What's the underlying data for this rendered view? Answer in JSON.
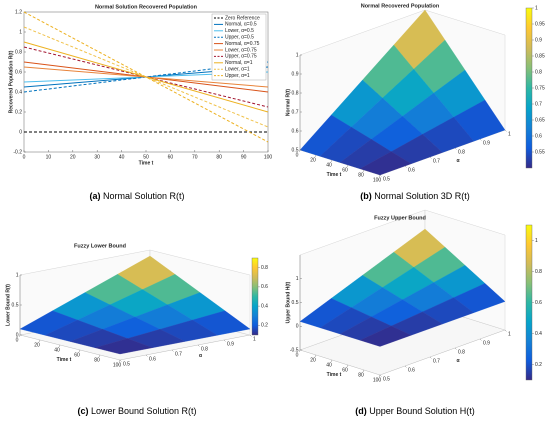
{
  "chart_data": [
    {
      "type": "line",
      "title": "Normal Solution Recovered Population",
      "x_label": "Time t",
      "y_label": "Recovered Population R(t)",
      "xlim": [
        0,
        100
      ],
      "xticks": [
        0,
        10,
        20,
        30,
        40,
        50,
        60,
        70,
        80,
        90,
        100
      ],
      "ylim": [
        -0.2,
        1.2
      ],
      "yticks": [
        -0.2,
        0,
        0.2,
        0.4,
        0.6,
        0.8,
        1,
        1.2
      ],
      "legend": "upper right",
      "series": [
        {
          "name": "Zero Reference",
          "color": "#000000",
          "dash": true,
          "x": [
            0,
            100
          ],
          "values": [
            0,
            0
          ]
        },
        {
          "name": "Normal, α=0.5",
          "color": "#0072bd",
          "dash": false,
          "x": [
            0,
            100
          ],
          "values": [
            0.45,
            0.65
          ]
        },
        {
          "name": "Lower, α=0.5",
          "color": "#4dbeee",
          "dash": false,
          "x": [
            0,
            100
          ],
          "values": [
            0.5,
            0.6
          ]
        },
        {
          "name": "Upper, α=0.5",
          "color": "#0072bd",
          "dash": true,
          "x": [
            0,
            100
          ],
          "values": [
            0.4,
            0.7
          ]
        },
        {
          "name": "Normal, α=0.75",
          "color": "#d95319",
          "dash": false,
          "x": [
            0,
            100
          ],
          "values": [
            0.7,
            0.4
          ]
        },
        {
          "name": "Lower, α=0.75",
          "color": "#e8833a",
          "dash": false,
          "x": [
            0,
            100
          ],
          "values": [
            0.65,
            0.45
          ]
        },
        {
          "name": "Upper, α=0.75",
          "color": "#a2142f",
          "dash": true,
          "x": [
            0,
            100
          ],
          "values": [
            0.85,
            0.25
          ]
        },
        {
          "name": "Normal, α=1",
          "color": "#edb120",
          "dash": false,
          "x": [
            0,
            100
          ],
          "values": [
            0.9,
            0.2
          ]
        },
        {
          "name": "Lower, α=1",
          "color": "#f0c24a",
          "dash": true,
          "x": [
            0,
            100
          ],
          "values": [
            1.05,
            0.05
          ]
        },
        {
          "name": "Upper, α=1",
          "color": "#edb120",
          "dash": true,
          "x": [
            0,
            100
          ],
          "values": [
            1.2,
            -0.1
          ]
        }
      ],
      "caption": {
        "label": "(a)",
        "text": "Normal Solution R(t)"
      }
    },
    {
      "type": "surface3d",
      "title": "Normal Recovered Population",
      "x_label": "Time t",
      "y_label": "α",
      "z_label": "Normal R(t)",
      "x": [
        0,
        25,
        50,
        75,
        100
      ],
      "y": [
        0.5,
        0.625,
        0.75,
        0.875,
        1
      ],
      "z": [
        [
          0.5,
          0.5,
          0.5,
          0.5,
          0.5
        ],
        [
          0.625,
          0.594,
          0.563,
          0.531,
          0.5
        ],
        [
          0.75,
          0.688,
          0.625,
          0.563,
          0.5
        ],
        [
          0.875,
          0.781,
          0.688,
          0.594,
          0.5
        ],
        [
          1,
          0.875,
          0.75,
          0.625,
          0.5
        ]
      ],
      "xlim": [
        0,
        100
      ],
      "xticks": [
        0,
        20,
        40,
        60,
        80,
        100
      ],
      "ylim": [
        0.5,
        1
      ],
      "yticks": [
        0.5,
        0.6,
        0.7,
        0.8,
        0.9,
        1
      ],
      "zlim": [
        0.5,
        1
      ],
      "zticks": [
        0.5,
        0.6,
        0.7,
        0.8,
        0.9,
        1
      ],
      "clim": [
        0.5,
        1
      ],
      "cticks": [
        0.55,
        0.6,
        0.65,
        0.7,
        0.75,
        0.8,
        0.85,
        0.9,
        0.95,
        1
      ],
      "colormap": "parula",
      "caption": {
        "label": "(b)",
        "text": "Normal Solution 3D R(t)"
      }
    },
    {
      "type": "surface3d",
      "title": "Fuzzy Lower Bound",
      "x_label": "Time t",
      "y_label": "α",
      "z_label": "Lower Bound R(t)",
      "x": [
        0,
        25,
        50,
        75,
        100
      ],
      "y": [
        0.5,
        0.625,
        0.75,
        0.875,
        1
      ],
      "z": [
        [
          0.1,
          0.1,
          0.1,
          0.1,
          0.1
        ],
        [
          0.3,
          0.25,
          0.2,
          0.15,
          0.1
        ],
        [
          0.5,
          0.4,
          0.3,
          0.2,
          0.1
        ],
        [
          0.7,
          0.55,
          0.4,
          0.25,
          0.1
        ],
        [
          0.9,
          0.7,
          0.5,
          0.3,
          0.1
        ]
      ],
      "xlim": [
        0,
        100
      ],
      "xticks": [
        0,
        20,
        40,
        60,
        80,
        100
      ],
      "ylim": [
        0.5,
        1
      ],
      "yticks": [
        0.5,
        0.6,
        0.7,
        0.8,
        0.9,
        1
      ],
      "zlim": [
        0,
        1
      ],
      "zticks": [
        0,
        0.5,
        1
      ],
      "clim": [
        0.1,
        0.9
      ],
      "cticks": [
        0.2,
        0.4,
        0.6,
        0.8
      ],
      "colormap": "parula",
      "caption": {
        "label": "(c)",
        "text": "Lower Bound Solution R(t)"
      }
    },
    {
      "type": "surface3d",
      "title": "Fuzzy Upper Bound",
      "x_label": "Time t",
      "y_label": "α",
      "z_label": "Upper Bound H(t)",
      "x": [
        0,
        25,
        50,
        75,
        100
      ],
      "y": [
        0.5,
        0.625,
        0.75,
        0.875,
        1
      ],
      "z": [
        [
          0.1,
          0.1,
          0.1,
          0.1,
          0.1
        ],
        [
          0.35,
          0.288,
          0.225,
          0.163,
          0.1
        ],
        [
          0.6,
          0.475,
          0.35,
          0.225,
          0.1
        ],
        [
          0.85,
          0.663,
          0.475,
          0.288,
          0.1
        ],
        [
          1.1,
          0.85,
          0.6,
          0.35,
          0.1
        ]
      ],
      "xlim": [
        0,
        100
      ],
      "xticks": [
        0,
        20,
        40,
        60,
        80,
        100
      ],
      "ylim": [
        0.5,
        1
      ],
      "yticks": [
        0.5,
        0.6,
        0.7,
        0.8,
        0.9,
        1
      ],
      "zlim": [
        -0.5,
        1.5
      ],
      "zticks": [
        -0.5,
        0,
        0.5,
        1
      ],
      "clim": [
        0.1,
        1.1
      ],
      "cticks": [
        0.2,
        0.4,
        0.6,
        0.8,
        1
      ],
      "colormap": "parula",
      "caption": {
        "label": "(d)",
        "text": "Upper Bound Solution H(t)"
      }
    }
  ]
}
